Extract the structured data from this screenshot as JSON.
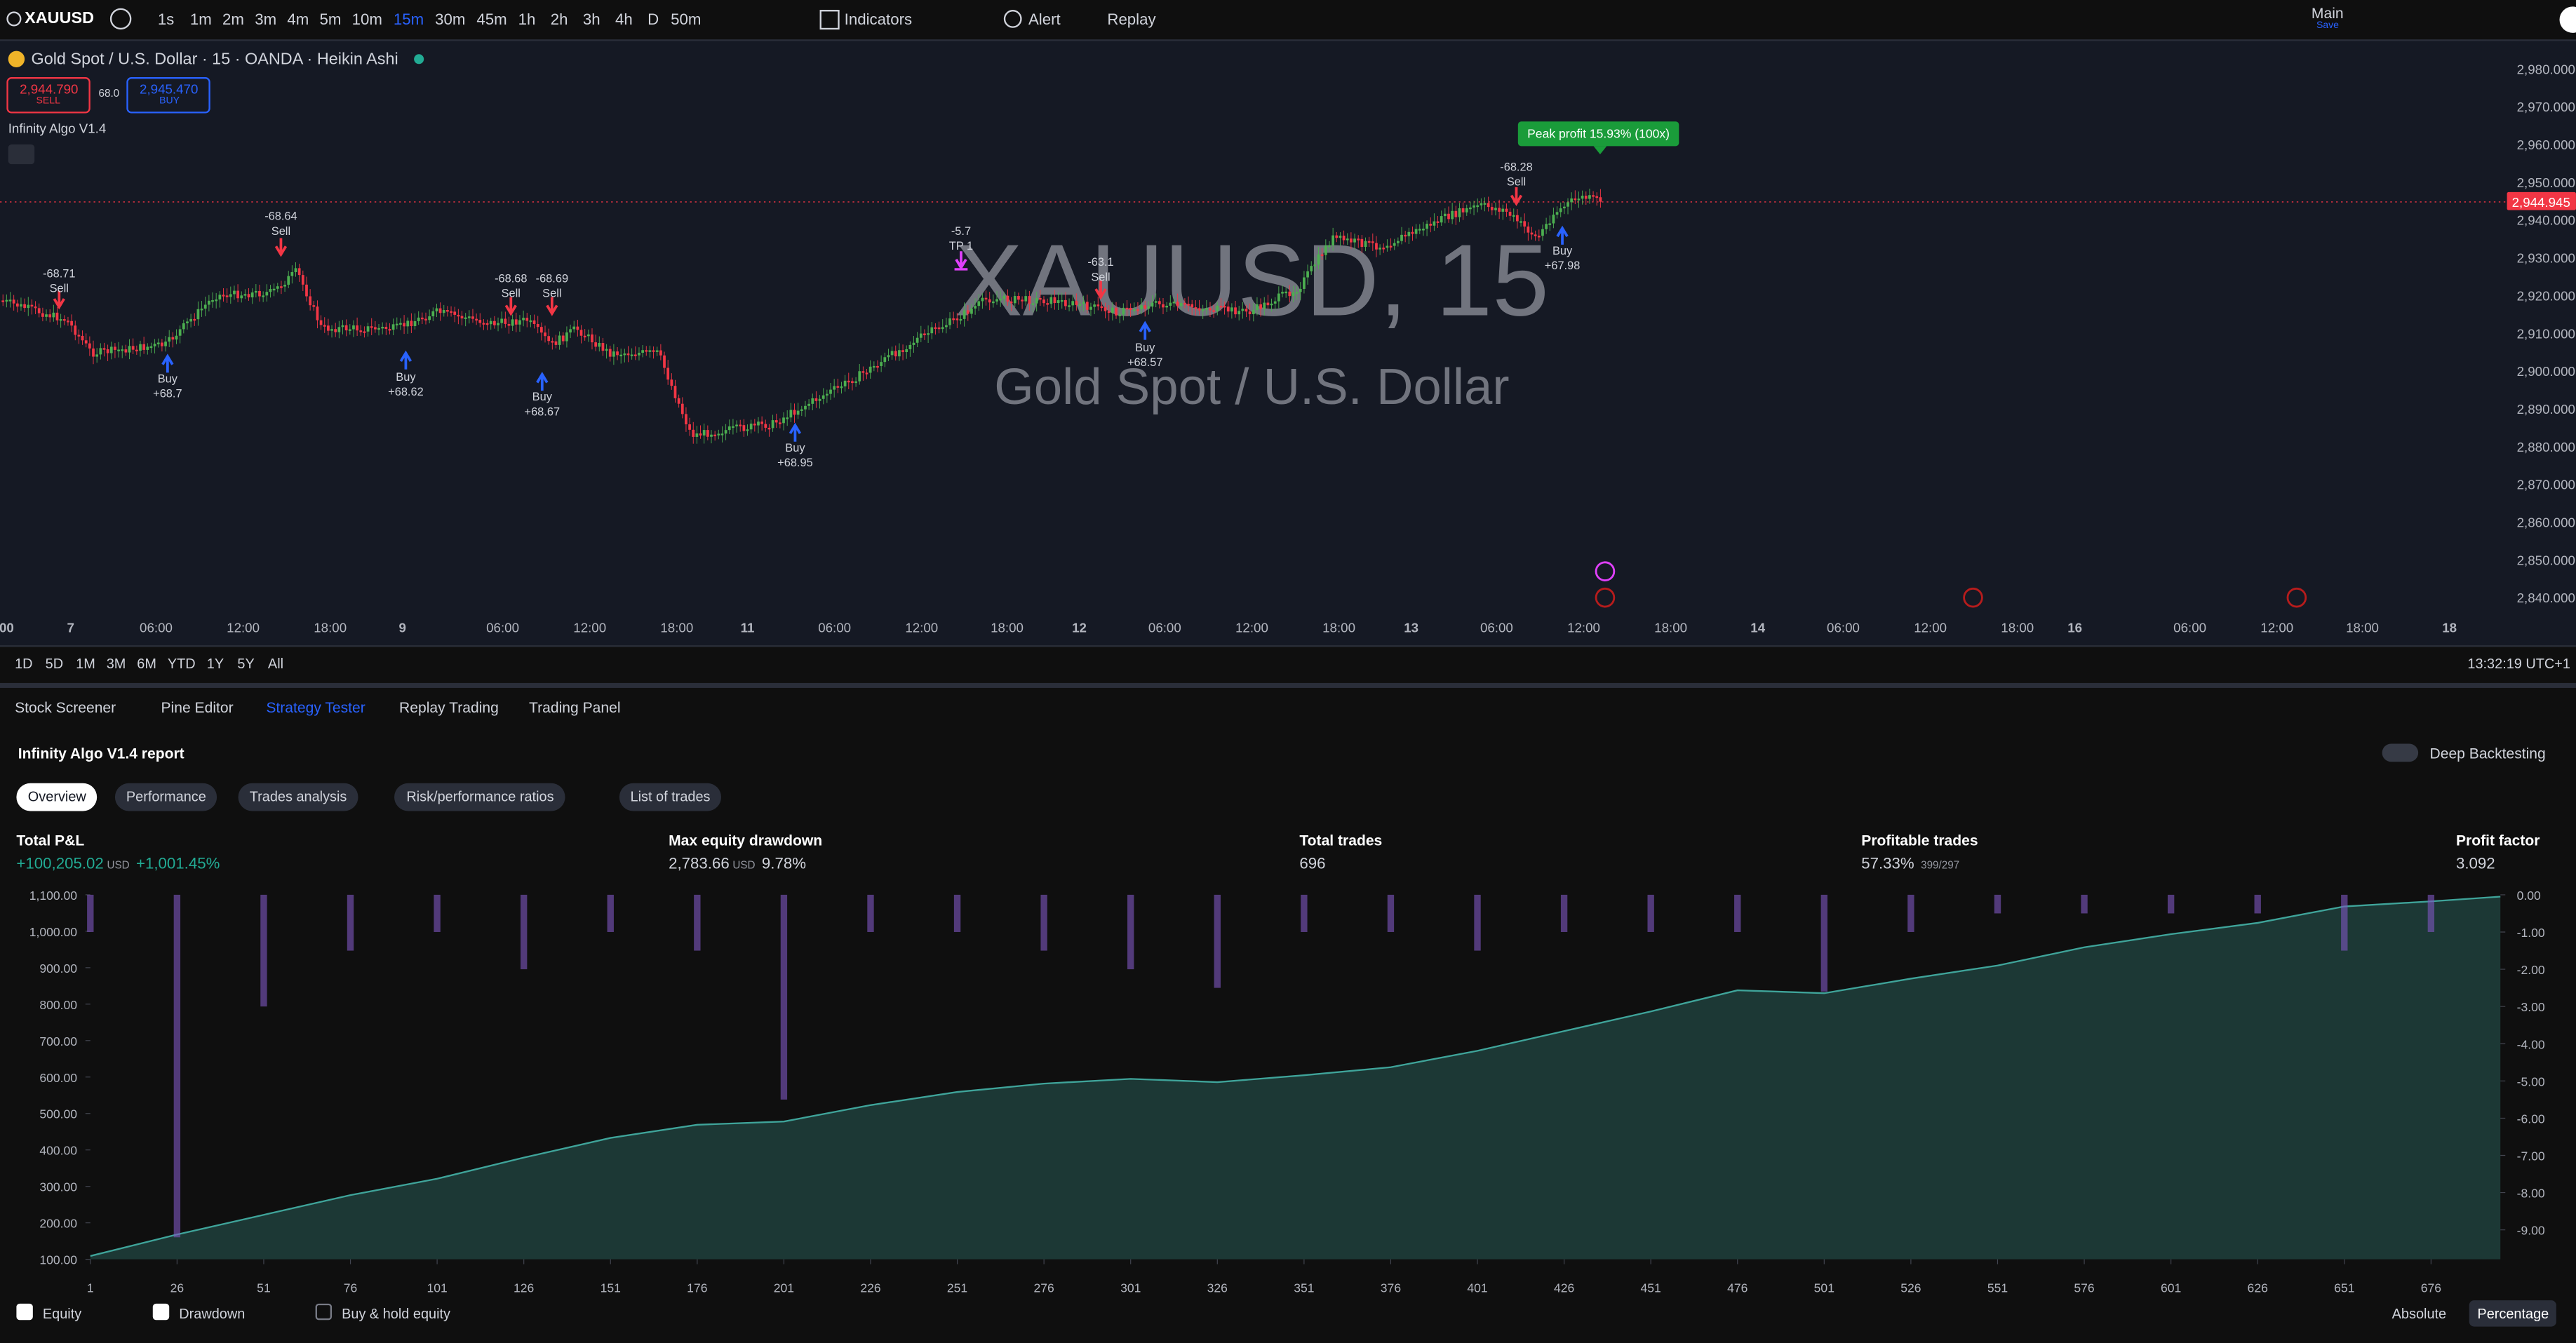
{
  "toolbar": {
    "symbol": "XAUUSD",
    "intervals": [
      "1s",
      "1m",
      "2m",
      "3m",
      "4m",
      "5m",
      "10m",
      "15m",
      "30m",
      "45m",
      "1h",
      "2h",
      "3h",
      "4h",
      "D",
      "50m"
    ],
    "active_interval": 7,
    "indicators": "Indicators",
    "alert": "Alert",
    "replay": "Replay",
    "layout": "Main",
    "layout_status": "Save"
  },
  "chart": {
    "title": "Gold Spot / U.S. Dollar · 15 · OANDA · Heikin Ashi",
    "sell_price": "2,944.790",
    "sell_label": "SELL",
    "spread": "68.0",
    "buy_price": "2,945.470",
    "buy_label": "BUY",
    "indicator": "Infinity Algo V1.4",
    "watermark_symbol": "XAUUSD, 15",
    "watermark_name": "Gold Spot / U.S. Dollar",
    "price_ticks": [
      "2,980.000",
      "2,970.000",
      "2,960.000",
      "2,950.000",
      "2,940.000",
      "2,930.000",
      "2,920.000",
      "2,910.000",
      "2,900.000",
      "2,890.000",
      "2,880.000",
      "2,870.000",
      "2,860.000",
      "2,850.000",
      "2,840.000"
    ],
    "last_price": "2,944.945",
    "time_ticks": [
      "00",
      "7",
      "06:00",
      "12:00",
      "18:00",
      "9",
      "06:00",
      "12:00",
      "18:00",
      "11",
      "06:00",
      "12:00",
      "18:00",
      "12",
      "06:00",
      "12:00",
      "18:00",
      "13",
      "06:00",
      "12:00",
      "18:00",
      "14",
      "06:00",
      "12:00",
      "18:00",
      "16",
      "06:00",
      "12:00",
      "18:00",
      "18"
    ],
    "peak_profit": "Peak profit 15.93% (100x)",
    "signals": [
      {
        "side": "sell",
        "lines": [
          "-68.71",
          "Sell"
        ]
      },
      {
        "side": "buy",
        "lines": [
          "Buy",
          "+68.7"
        ]
      },
      {
        "side": "sell",
        "lines": [
          "-68.64",
          "Sell"
        ]
      },
      {
        "side": "buy",
        "lines": [
          "Buy",
          "+68.62"
        ]
      },
      {
        "side": "sell",
        "lines": [
          "-68.68",
          "Sell"
        ]
      },
      {
        "side": "sell",
        "lines": [
          "-68.69",
          "Sell"
        ]
      },
      {
        "side": "buy",
        "lines": [
          "Buy",
          "+68.67"
        ]
      },
      {
        "side": "buy",
        "lines": [
          "Buy",
          "+68.95"
        ]
      },
      {
        "side": "tp",
        "lines": [
          "-5.7",
          "TP 1"
        ]
      },
      {
        "side": "sell",
        "lines": [
          "-63.1",
          "Sell"
        ]
      },
      {
        "side": "buy",
        "lines": [
          "Buy",
          "+68.57"
        ]
      },
      {
        "side": "sell",
        "lines": [
          "-68.28",
          "Sell"
        ]
      },
      {
        "side": "buy",
        "lines": [
          "Buy",
          "+67.98"
        ]
      }
    ]
  },
  "bottom_bar": {
    "ranges": [
      "1D",
      "5D",
      "1M",
      "3M",
      "6M",
      "YTD",
      "1Y",
      "5Y",
      "All"
    ],
    "clock": "13:32:19 UTC+1"
  },
  "panel": {
    "tabs": [
      "Stock Screener",
      "Pine Editor",
      "Strategy Tester",
      "Replay Trading",
      "Trading Panel"
    ],
    "active_tab": 2,
    "report": "Infinity Algo V1.4 report",
    "deep_backtesting": "Deep Backtesting",
    "subtabs": [
      "Overview",
      "Performance",
      "Trades analysis",
      "Risk/performance ratios",
      "List of trades"
    ],
    "active_subtab": 0,
    "metrics": [
      {
        "label": "Total P&L",
        "value": "+100,205.02",
        "unit": "USD",
        "extra": "+1,001.45%"
      },
      {
        "label": "Max equity drawdown",
        "value": "2,783.66",
        "unit": "USD",
        "extra": "9.78%"
      },
      {
        "label": "Total trades",
        "value": "696"
      },
      {
        "label": "Profitable trades",
        "value": "57.33%",
        "extra": "399/297"
      },
      {
        "label": "Profit factor",
        "value": "3.092"
      }
    ]
  },
  "chart_data": {
    "type": "area",
    "x": [
      1,
      26,
      51,
      76,
      101,
      126,
      151,
      176,
      201,
      226,
      251,
      276,
      301,
      326,
      351,
      376,
      401,
      426,
      451,
      476,
      501,
      526,
      551,
      576,
      601,
      626,
      651,
      676,
      696
    ],
    "series": [
      {
        "name": "Equity",
        "color": "#3fa49a",
        "checked": true,
        "values": [
          109,
          168,
          222,
          276,
          321,
          379,
          433,
          469,
          478,
          523,
          559,
          582,
          595,
          586,
          605,
          627,
          672,
          726,
          780,
          838,
          830,
          870,
          906,
          956,
          992,
          1023,
          1068,
          1082,
          1095
        ]
      },
      {
        "name": "Drawdown",
        "color": "#7e57c2",
        "axis": "y2",
        "checked": true,
        "values": [
          -1,
          -9.2,
          -3,
          -1.5,
          -1,
          -2,
          -1,
          -1.5,
          -5.5,
          -1,
          -1,
          -1.5,
          -2,
          -2.5,
          -1,
          -1,
          -1.5,
          -1,
          -1,
          -1,
          -2.6,
          -1,
          -0.5,
          -0.5,
          -0.5,
          -0.5,
          -1.5,
          -1,
          0
        ]
      }
    ],
    "extra_legend": {
      "name": "Buy & hold equity",
      "checked": false
    },
    "xlim": [
      1,
      696
    ],
    "xticks": [
      1,
      26,
      51,
      76,
      101,
      126,
      151,
      176,
      201,
      226,
      251,
      276,
      301,
      326,
      351,
      376,
      401,
      426,
      451,
      476,
      501,
      526,
      551,
      576,
      601,
      626,
      651,
      676
    ],
    "ylim": [
      100,
      1100
    ],
    "yticks": [
      {
        "value": 1100,
        "label": "1,100.00"
      },
      {
        "value": 1000,
        "label": "1,000.00"
      },
      {
        "value": 900,
        "label": "900.00"
      },
      {
        "value": 800,
        "label": "800.00"
      },
      {
        "value": 700,
        "label": "700.00"
      },
      {
        "value": 600,
        "label": "600.00"
      },
      {
        "value": 500,
        "label": "500.00"
      },
      {
        "value": 400,
        "label": "400.00"
      },
      {
        "value": 300,
        "label": "300.00"
      },
      {
        "value": 200,
        "label": "200.00"
      },
      {
        "value": 100,
        "label": "100.00"
      }
    ],
    "y2lim": [
      -9.79,
      0
    ],
    "y2ticks": [
      {
        "value": 0,
        "label": "0.00"
      },
      {
        "value": -1,
        "label": "-1.00"
      },
      {
        "value": -2,
        "label": "-2.00"
      },
      {
        "value": -3,
        "label": "-3.00"
      },
      {
        "value": -4,
        "label": "-4.00"
      },
      {
        "value": -5,
        "label": "-5.00"
      },
      {
        "value": -6,
        "label": "-6.00"
      },
      {
        "value": -7,
        "label": "-7.00"
      },
      {
        "value": -8,
        "label": "-8.00"
      },
      {
        "value": -9,
        "label": "-9.00"
      }
    ],
    "modes": [
      "Absolute",
      "Percentage"
    ],
    "active_mode": 1
  }
}
